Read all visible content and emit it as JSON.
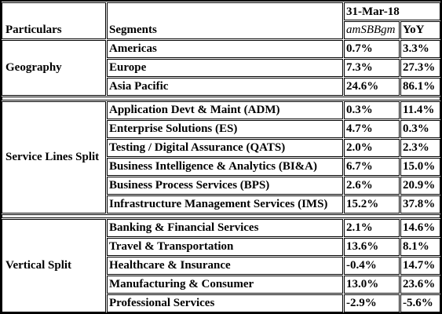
{
  "header": {
    "particulars": "Particulars",
    "segments": "Segments",
    "date": "31-Mar-18",
    "metric": "amSBBgm",
    "yoy": "YoY"
  },
  "sections": [
    {
      "name": "Geography",
      "rows": [
        {
          "segment": "Americas",
          "value": "0.7%",
          "yoy": "3.3%"
        },
        {
          "segment": "Europe",
          "value": "7.3%",
          "yoy": "27.3%"
        },
        {
          "segment": "Asia Pacific",
          "value": "24.6%",
          "yoy": "86.1%"
        }
      ]
    },
    {
      "name": "Service Lines Split",
      "rows": [
        {
          "segment": "Application Devt & Maint (ADM)",
          "value": "0.3%",
          "yoy": "11.4%"
        },
        {
          "segment": "Enterprise Solutions (ES)",
          "value": "4.7%",
          "yoy": "0.3%"
        },
        {
          "segment": "Testing / Digital Assurance (QATS)",
          "value": "2.0%",
          "yoy": "2.3%"
        },
        {
          "segment": "Business Intelligence & Analytics (BI&A)",
          "value": "6.7%",
          "yoy": "15.0%"
        },
        {
          "segment": "Business Process Services (BPS)",
          "value": "2.6%",
          "yoy": "20.9%"
        },
        {
          "segment": "Infrastructure Management Services (IMS)",
          "value": "15.2%",
          "yoy": "37.8%"
        }
      ]
    },
    {
      "name": "Vertical Split",
      "rows": [
        {
          "segment": "Banking & Financial Services",
          "value": "2.1%",
          "yoy": "14.6%"
        },
        {
          "segment": "Travel & Transportation",
          "value": "13.6%",
          "yoy": "8.1%"
        },
        {
          "segment": "Healthcare & Insurance",
          "value": "-0.4%",
          "yoy": "14.7%"
        },
        {
          "segment": "Manufacturing & Consumer",
          "value": "13.0%",
          "yoy": "23.6%"
        },
        {
          "segment": "Professional Services",
          "value": "-2.9%",
          "yoy": "-5.6%"
        }
      ]
    }
  ]
}
